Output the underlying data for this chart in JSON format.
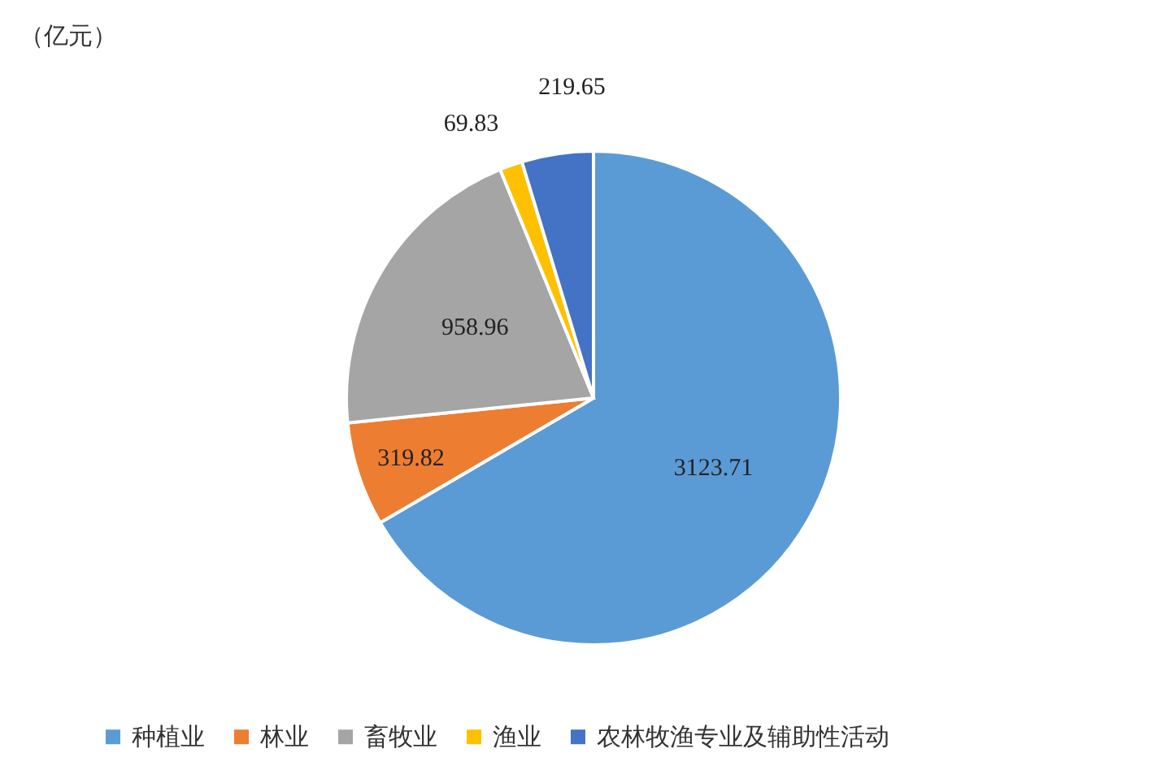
{
  "chart_data": {
    "type": "pie",
    "title": "（亿元）",
    "categories": [
      "种植业",
      "林业",
      "畜牧业",
      "渔业",
      "农林牧渔专业及辅助性活动"
    ],
    "values": [
      3123.71,
      319.82,
      958.96,
      69.83,
      219.65
    ],
    "colors": [
      "#5b9bd5",
      "#ed7d31",
      "#a5a5a5",
      "#ffc000",
      "#4472c4"
    ],
    "data_labels": true,
    "legend": "bottom"
  }
}
